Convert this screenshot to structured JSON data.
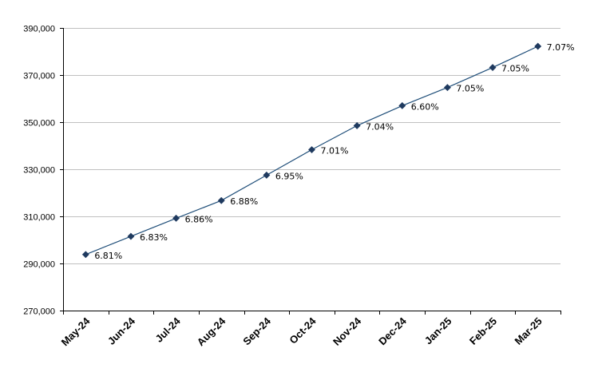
{
  "chart_data": {
    "type": "line",
    "title": "",
    "xlabel": "",
    "ylabel": "",
    "categories": [
      "May-24",
      "Jun-24",
      "Jul-24",
      "Aug-24",
      "Sep-24",
      "Oct-24",
      "Nov-24",
      "Dec-24",
      "Jan-25",
      "Feb-25",
      "Mar-25"
    ],
    "series": [
      {
        "values": [
          293800,
          301500,
          309200,
          316700,
          327500,
          338300,
          348500,
          357000,
          364700,
          373200,
          382200
        ],
        "data_labels": [
          "6.81%",
          "6.83%",
          "6.86%",
          "6.88%",
          "6.95%",
          "7.01%",
          "7.04%",
          "6.60%",
          "7.05%",
          "7.05%",
          "7.07%"
        ]
      }
    ],
    "ylim": [
      270000,
      390000
    ],
    "yticks": [
      270000,
      290000,
      310000,
      330000,
      350000,
      370000,
      390000
    ],
    "ytick_labels": [
      "270,000",
      "290,000",
      "310,000",
      "330,000",
      "350,000",
      "370,000",
      "390,000"
    ],
    "grid": true,
    "legend": "none",
    "line_color": "#1f4e79",
    "marker_color": "#1f3a5f",
    "grid_color": "#c0c0c0"
  }
}
